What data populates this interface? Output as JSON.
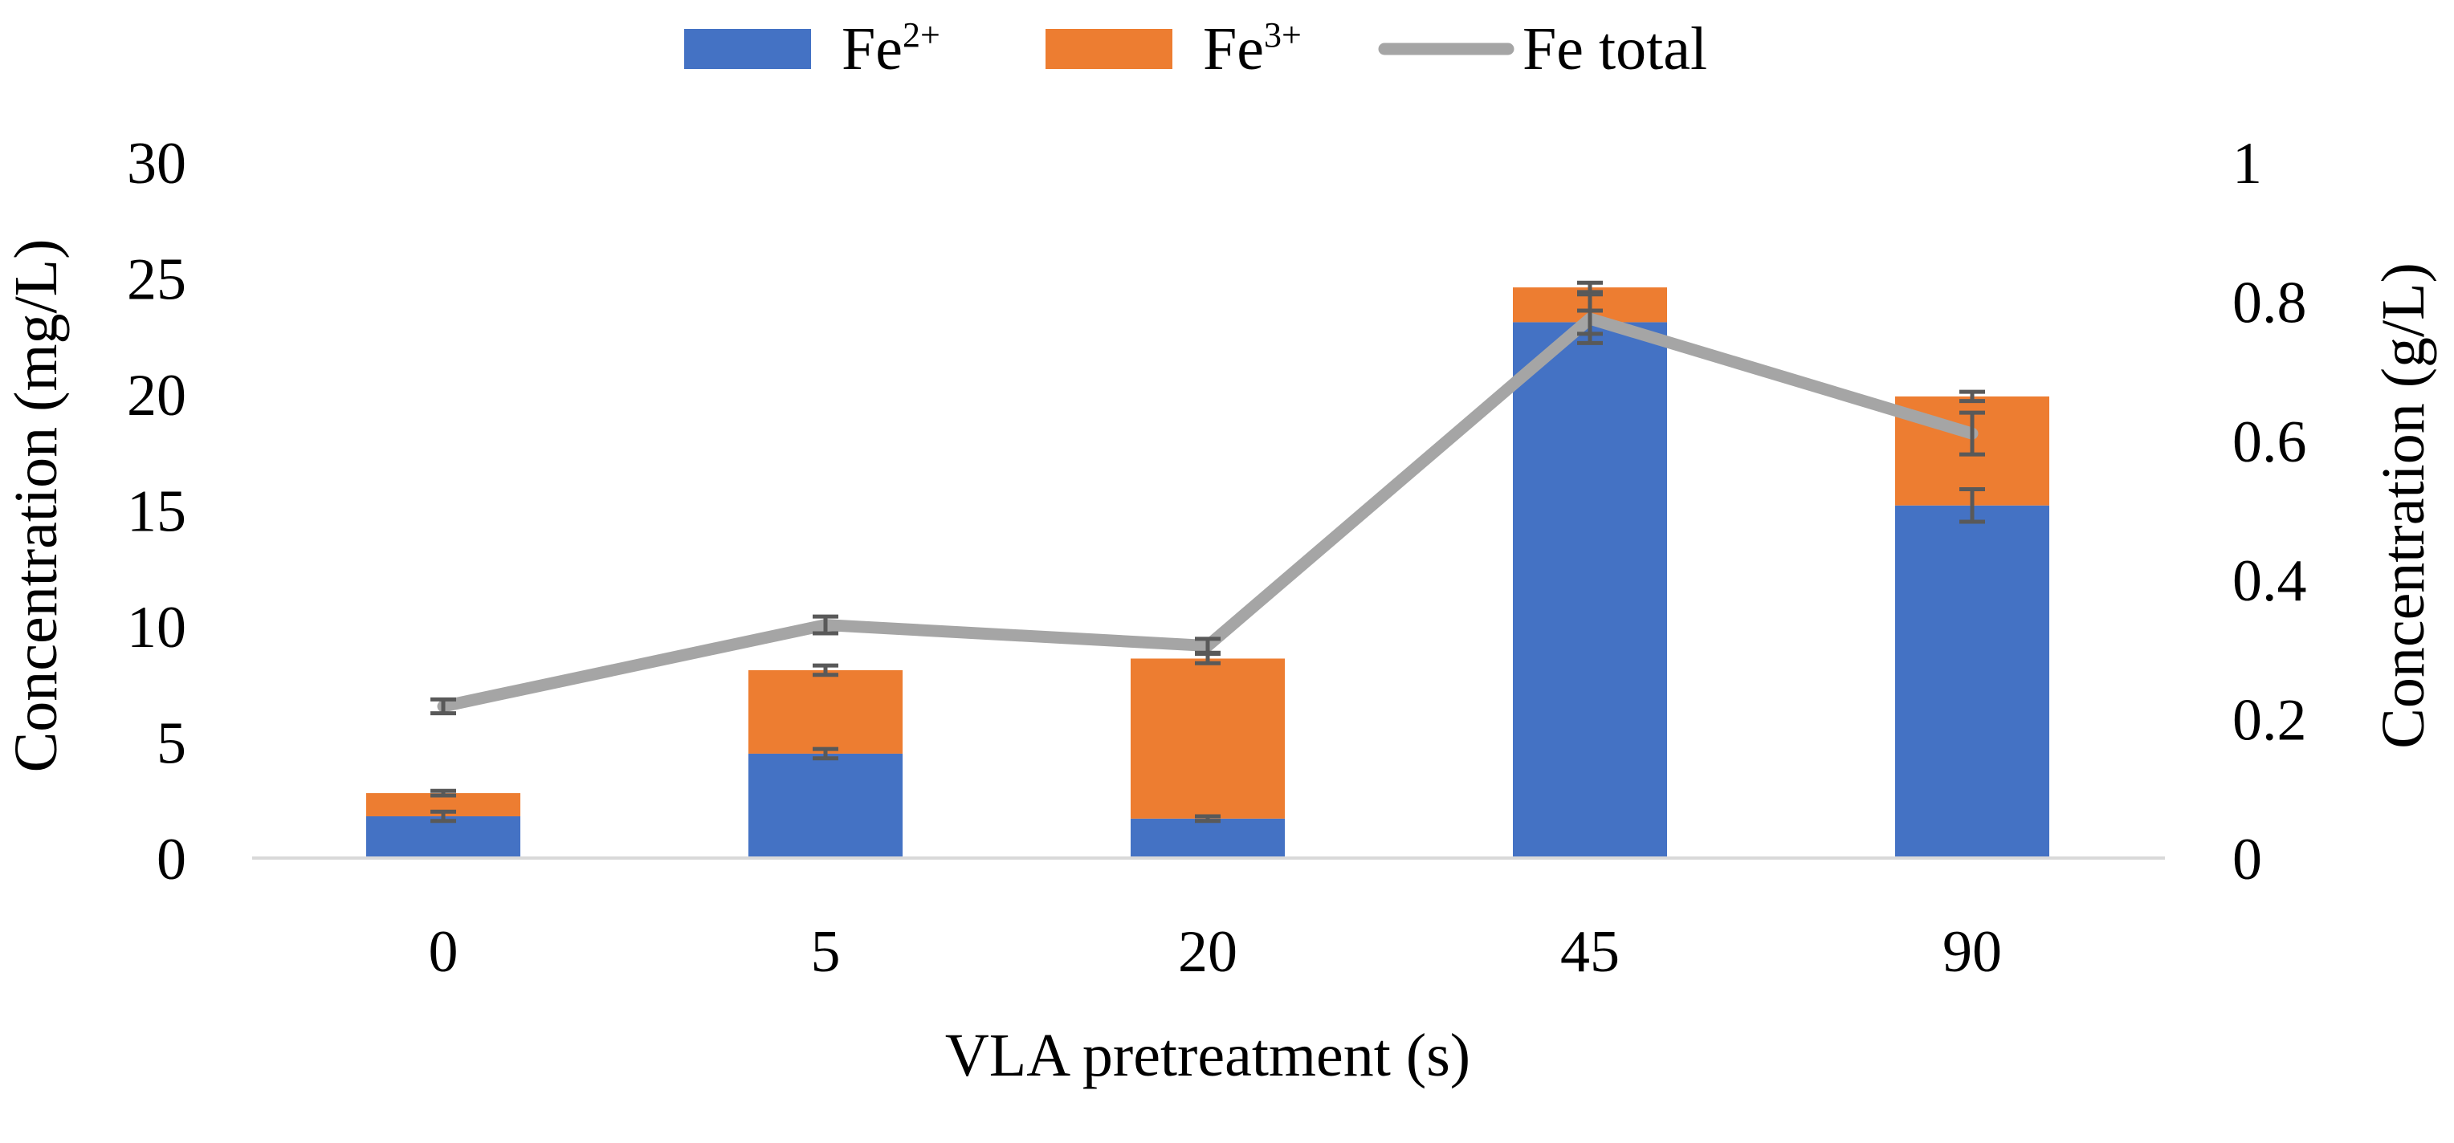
{
  "chart_data": {
    "type": "bar",
    "stacked": true,
    "categories": [
      "0",
      "5",
      "20",
      "45",
      "90"
    ],
    "xlabel": "VLA pretreatment (s)",
    "ylabel": "Concentration (mg/L)",
    "y2label": "Concentration (g/L)",
    "ylim": [
      0,
      30
    ],
    "y2lim": [
      0,
      1
    ],
    "yticks": [
      "0",
      "5",
      "10",
      "15",
      "20",
      "25",
      "30"
    ],
    "y2ticks": [
      "0",
      "0.2",
      "0.4",
      "0.6",
      "0.8",
      "1"
    ],
    "legend_position": "top-center",
    "series": [
      {
        "name": "Fe",
        "sup": "2+",
        "kind": "bar",
        "axis": "left",
        "color": "#4472C4",
        "values": [
          1.8,
          4.5,
          1.7,
          23.1,
          15.2
        ],
        "errors": [
          0.2,
          0.2,
          0.1,
          0.5,
          0.7
        ]
      },
      {
        "name": "Fe",
        "sup": "3+",
        "kind": "bar",
        "axis": "left",
        "color": "#ED7D31",
        "values": [
          1.0,
          3.6,
          6.9,
          1.5,
          4.7
        ],
        "errors": [
          0.1,
          0.2,
          0.2,
          0.2,
          0.2
        ]
      },
      {
        "name": "Fe total",
        "sup": "",
        "kind": "line",
        "axis": "right",
        "color": "#A5A5A5",
        "values": [
          0.218,
          0.335,
          0.305,
          0.775,
          0.61
        ],
        "errors": [
          0.01,
          0.012,
          0.01,
          0.035,
          0.03
        ]
      }
    ]
  }
}
